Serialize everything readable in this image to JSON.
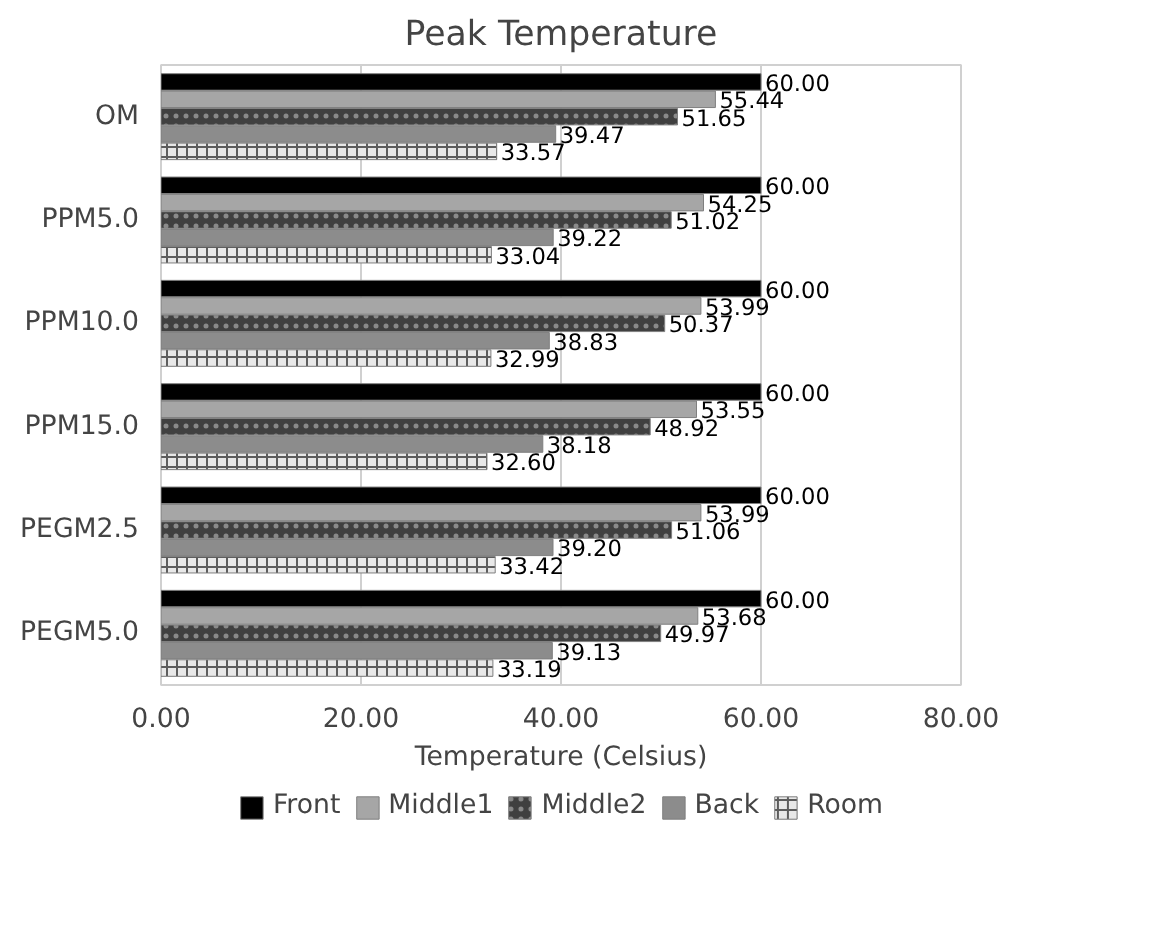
{
  "chart_data": {
    "type": "bar",
    "orientation": "horizontal",
    "title": "Peak Temperature",
    "xlabel": "Temperature (Celsius)",
    "categories": [
      "OM",
      "PPM5.0",
      "PPM10.0",
      "PPM15.0",
      "PEGM2.5",
      "PEGM5.0"
    ],
    "series": [
      {
        "name": "Front",
        "color": "#000000",
        "values": [
          60.0,
          60.0,
          60.0,
          60.0,
          60.0,
          60.0
        ],
        "value_labels": [
          "60.00",
          "60.00",
          "60.00",
          "60.00",
          "60.00",
          "60.00"
        ]
      },
      {
        "name": "Middle1",
        "color": "#a6a6a6",
        "values": [
          55.44,
          54.25,
          53.99,
          53.55,
          53.99,
          53.68
        ],
        "value_labels": [
          "55.44",
          "54.25",
          "53.99",
          "53.55",
          "53.99",
          "53.68"
        ]
      },
      {
        "name": "Middle2",
        "color": "#404040",
        "values": [
          51.65,
          51.02,
          50.37,
          48.92,
          51.06,
          49.97
        ],
        "value_labels": [
          "51.65",
          "51.02",
          "50.37",
          "48.92",
          "51.06",
          "49.97"
        ]
      },
      {
        "name": "Back",
        "color": "#8c8c8c",
        "values": [
          39.47,
          39.22,
          38.83,
          38.18,
          39.2,
          39.13
        ],
        "value_labels": [
          "39.47",
          "39.22",
          "38.83",
          "38.18",
          "39.20",
          "39.13"
        ]
      },
      {
        "name": "Room",
        "color": "#e8e8e8",
        "values": [
          33.57,
          33.04,
          32.99,
          32.6,
          33.42,
          33.19
        ],
        "value_labels": [
          "33.57",
          "33.04",
          "32.99",
          "32.60",
          "33.42",
          "33.19"
        ]
      }
    ],
    "xlim": [
      0,
      80
    ],
    "xticks": [
      {
        "value": 0,
        "label": "0.00"
      },
      {
        "value": 20,
        "label": "20.00"
      },
      {
        "value": 40,
        "label": "40.00"
      },
      {
        "value": 60,
        "label": "60.00"
      },
      {
        "value": 80,
        "label": "80.00"
      }
    ],
    "grid": "x",
    "legend": "bottom"
  }
}
